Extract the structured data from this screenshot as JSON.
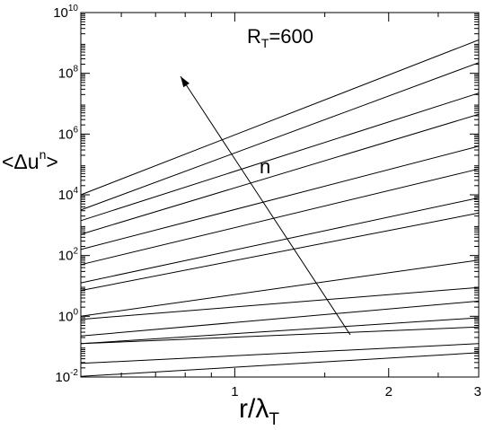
{
  "chart_data": {
    "type": "line",
    "title": "",
    "x_axis": {
      "scale": "log",
      "range": [
        0.5,
        3
      ],
      "major_ticks": [
        1,
        2,
        3
      ],
      "tick_labels": [
        "1",
        "2",
        "3"
      ]
    },
    "y_axis": {
      "scale": "log",
      "range_exponent": [
        -2,
        10
      ],
      "tick_base": "10",
      "tick_exponents": [
        "-2",
        "0",
        "2",
        "4",
        "6",
        "8",
        "10"
      ]
    },
    "xlabel": {
      "main": "r/λ",
      "sub": "T"
    },
    "ylabel": {
      "left": "<Δu",
      "sup": "n",
      "right": ">"
    },
    "annotations": {
      "reynolds": {
        "main": "R",
        "sub": "T",
        "rest": "=600"
      },
      "arrow_label": "n"
    },
    "grid": false,
    "legend": "none",
    "series": [
      {
        "x": [
          0.5,
          3
        ],
        "log10_y": [
          -1.98,
          -1.2
        ]
      },
      {
        "x": [
          0.5,
          3
        ],
        "log10_y": [
          -1.55,
          -0.9
        ]
      },
      {
        "x": [
          0.5,
          3
        ],
        "log10_y": [
          -0.9,
          -0.05
        ]
      },
      {
        "x": [
          0.5,
          3
        ],
        "log10_y": [
          -0.9,
          -0.35
        ]
      },
      {
        "x": [
          0.5,
          3
        ],
        "log10_y": [
          -0.65,
          0.5
        ]
      },
      {
        "x": [
          0.5,
          3
        ],
        "log10_y": [
          -0.1,
          0.95
        ]
      },
      {
        "x": [
          0.5,
          3
        ],
        "log10_y": [
          0.0,
          1.85
        ]
      },
      {
        "x": [
          0.5,
          3
        ],
        "log10_y": [
          0.85,
          3.4
        ]
      },
      {
        "x": [
          0.5,
          3
        ],
        "log10_y": [
          1.1,
          3.9
        ]
      },
      {
        "x": [
          0.5,
          3
        ],
        "log10_y": [
          1.7,
          4.85
        ]
      },
      {
        "x": [
          0.5,
          3
        ],
        "log10_y": [
          2.2,
          5.6
        ]
      },
      {
        "x": [
          0.5,
          3
        ],
        "log10_y": [
          2.7,
          6.65
        ]
      },
      {
        "x": [
          0.5,
          3
        ],
        "log10_y": [
          3.15,
          7.35
        ]
      },
      {
        "x": [
          0.5,
          3
        ],
        "log10_y": [
          3.5,
          8.35
        ]
      },
      {
        "x": [
          0.5,
          3
        ],
        "log10_y": [
          4.0,
          9.1
        ]
      }
    ]
  }
}
